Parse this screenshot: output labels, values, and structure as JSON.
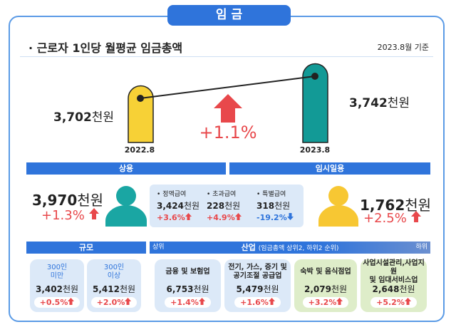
{
  "header": {
    "tab": "임 금",
    "title": "근로자 1인당 월평균 임금총액",
    "date": "2023.8월 기준"
  },
  "comparison": {
    "before": {
      "label": "2022.8",
      "value": "3,702",
      "unit": "천원"
    },
    "after": {
      "label": "2023.8",
      "value": "3,742",
      "unit": "천원"
    },
    "change": "+1.1%"
  },
  "regular": {
    "heading": "상용",
    "value": "3,970",
    "unit": "천원",
    "change": "+1.3%",
    "items": [
      {
        "name": "정액급여",
        "value": "3,424",
        "unit": "천원",
        "change": "+3.6%"
      },
      {
        "name": "초과급여",
        "value": "228",
        "unit": "천원",
        "change": "+4.9%"
      },
      {
        "name": "특별급여",
        "value": "318",
        "unit": "천원",
        "change": "-19.2%"
      }
    ]
  },
  "temporary": {
    "heading": "임시일용",
    "value": "1,762",
    "unit": "천원",
    "change": "+2.5%"
  },
  "size": {
    "heading": "규모",
    "cards": [
      {
        "label": "300인\n미만",
        "value": "3,402",
        "unit": "천원",
        "change": "+0.5%"
      },
      {
        "label": "300인\n이상",
        "value": "5,412",
        "unit": "천원",
        "change": "+2.0%"
      }
    ]
  },
  "industry": {
    "heading": "산업",
    "note": "(임금총액 상위2, 하위2 순위)",
    "top": "상위",
    "bottom": "하위",
    "cards": [
      {
        "label": "금융 및 보험업",
        "value": "6,753",
        "unit": "천원",
        "change": "+1.4%"
      },
      {
        "label": "전기, 가스, 증기 및\n공기조절 공급업",
        "value": "5,479",
        "unit": "천원",
        "change": "+1.6%"
      },
      {
        "label": "숙박 및 음식점업",
        "value": "2,079",
        "unit": "천원",
        "change": "+3.2%"
      },
      {
        "label": "사업시설관리,사업지원\n및 임대서비스업",
        "value": "2,648",
        "unit": "천원",
        "change": "+5.2%"
      }
    ]
  }
}
